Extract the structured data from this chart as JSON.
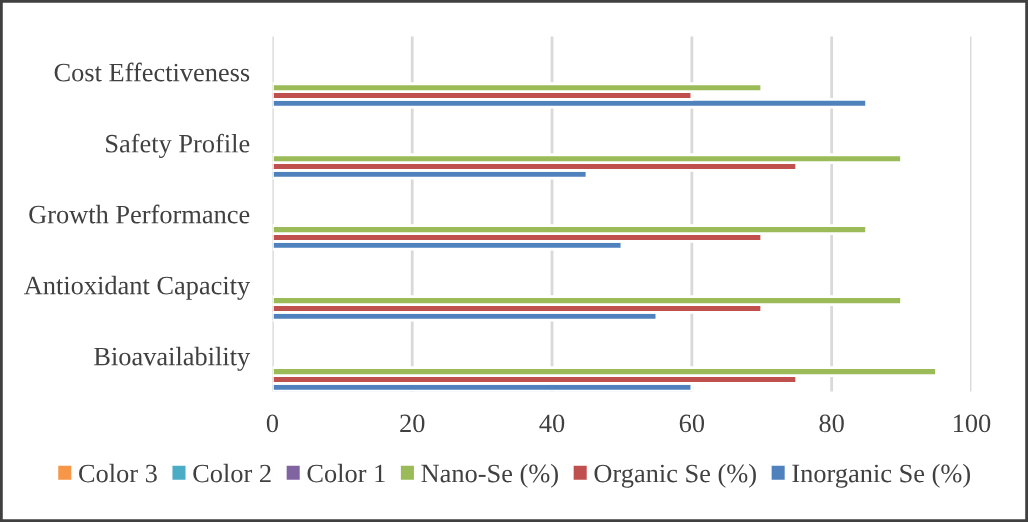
{
  "chart_data": {
    "type": "bar",
    "orientation": "horizontal",
    "categories": [
      "Cost Effectiveness",
      "Safety Profile",
      "Growth Performance",
      "Antioxidant Capacity",
      "Bioavailability"
    ],
    "series": [
      {
        "name": "Inorganic Se (%)",
        "color": "#4f81bd",
        "values": [
          85,
          45,
          50,
          55,
          60
        ]
      },
      {
        "name": "Organic Se (%)",
        "color": "#c0504d",
        "values": [
          60,
          75,
          70,
          70,
          75
        ]
      },
      {
        "name": "Nano-Se (%)",
        "color": "#9bbb59",
        "values": [
          70,
          90,
          85,
          90,
          95
        ]
      },
      {
        "name": "Color 1",
        "color": "#8064a2",
        "values": [
          null,
          null,
          null,
          null,
          null
        ]
      },
      {
        "name": "Color 2",
        "color": "#4bacc6",
        "values": [
          null,
          null,
          null,
          null,
          null
        ]
      },
      {
        "name": "Color 3",
        "color": "#f79646",
        "values": [
          null,
          null,
          null,
          null,
          null
        ]
      }
    ],
    "xlim": [
      0,
      100
    ],
    "xticks": [
      0,
      20,
      40,
      60,
      80,
      100
    ],
    "grid": "x",
    "legend": "bottom"
  }
}
